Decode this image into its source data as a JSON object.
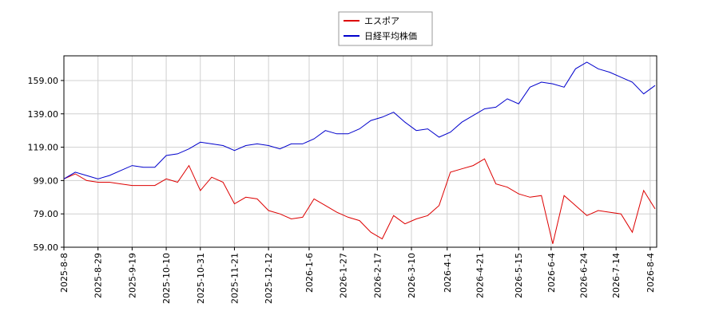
{
  "chart_data": {
    "type": "line",
    "x": [
      "2025-8-8",
      "2025-8-15",
      "2025-8-22",
      "2025-8-29",
      "2025-9-5",
      "2025-9-12",
      "2025-9-19",
      "2025-9-26",
      "2025-10-3",
      "2025-10-10",
      "2025-10-17",
      "2025-10-24",
      "2025-10-31",
      "2025-11-7",
      "2025-11-14",
      "2025-11-21",
      "2025-11-28",
      "2025-12-5",
      "2025-12-12",
      "2025-12-19",
      "2025-12-26",
      "2026-1-2",
      "2026-1-9",
      "2026-1-16",
      "2026-1-23",
      "2026-1-30",
      "2026-2-6",
      "2026-2-13",
      "2026-2-20",
      "2026-2-27",
      "2026-3-6",
      "2026-3-13",
      "2026-3-20",
      "2026-3-27",
      "2026-4-3",
      "2026-4-10",
      "2026-4-17",
      "2026-4-24",
      "2026-5-1",
      "2026-5-8",
      "2026-5-15",
      "2026-5-22",
      "2026-5-29",
      "2026-6-5",
      "2026-6-12",
      "2026-6-19",
      "2026-6-26",
      "2026-7-3",
      "2026-7-10",
      "2026-7-17",
      "2026-7-24",
      "2026-7-31",
      "2026-8-7"
    ],
    "series": [
      {
        "name": "エスポア",
        "color": "#dd0000",
        "values": [
          100,
          103,
          99,
          98,
          98,
          97,
          96,
          96,
          96,
          100,
          98,
          108,
          93,
          101,
          98,
          85,
          89,
          88,
          81,
          79,
          76,
          77,
          88,
          84,
          80,
          77,
          75,
          68,
          64,
          78,
          73,
          76,
          78,
          84,
          104,
          106,
          108,
          112,
          97,
          95,
          91,
          89,
          90,
          61,
          90,
          84,
          78,
          81,
          80,
          79,
          68,
          93,
          82
        ]
      },
      {
        "name": "日経平均株価",
        "color": "#0000cc",
        "values": [
          100,
          104,
          102,
          100,
          102,
          105,
          108,
          107,
          107,
          114,
          115,
          118,
          122,
          121,
          120,
          117,
          120,
          121,
          120,
          118,
          121,
          121,
          124,
          129,
          127,
          127,
          130,
          135,
          137,
          140,
          134,
          129,
          130,
          125,
          128,
          134,
          138,
          142,
          143,
          148,
          145,
          155,
          158,
          157,
          155,
          166,
          170,
          166,
          164,
          161,
          158,
          151,
          156
        ]
      }
    ],
    "xlim": [
      "2025-8-8",
      "2026-8-8"
    ],
    "xticks": [
      "2025-8-8",
      "2025-8-29",
      "2025-9-19",
      "2025-10-10",
      "2025-10-31",
      "2025-11-21",
      "2025-12-12",
      "2026-1-6",
      "2026-1-27",
      "2026-2-17",
      "2026-3-10",
      "2026-4-1",
      "2026-4-21",
      "2026-5-15",
      "2026-6-4",
      "2026-6-24",
      "2026-7-14",
      "2026-8-4"
    ],
    "ylim": [
      59,
      173.8
    ],
    "yticks": [
      {
        "value": 59,
        "label": "59.00"
      },
      {
        "value": 79,
        "label": "79.00"
      },
      {
        "value": 99,
        "label": "99.00"
      },
      {
        "value": 119,
        "label": "119.00"
      },
      {
        "value": 139,
        "label": "139.00"
      },
      {
        "value": 159,
        "label": "159.00"
      }
    ],
    "grid": true,
    "legend": "top"
  }
}
